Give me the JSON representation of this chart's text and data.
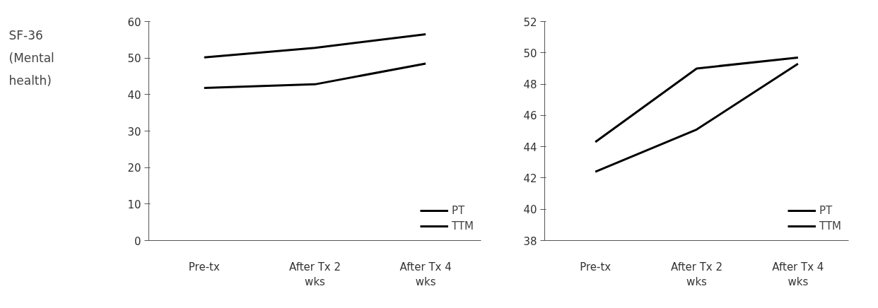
{
  "chart_data": [
    {
      "type": "other",
      "title": "SF-36 (Mental health)"
    },
    {
      "type": "line",
      "categories": [
        "Pre-tx",
        "After Tx 2 wks",
        "After Tx 4 wks"
      ],
      "ylim": [
        0,
        60
      ],
      "yticks": [
        0,
        10,
        20,
        30,
        40,
        50,
        60
      ],
      "grid": false,
      "legend": "bottom right",
      "series": [
        {
          "name": "PT",
          "color": "#000000",
          "values": [
            50.2,
            52.8,
            56.5
          ]
        },
        {
          "name": "TTM",
          "color": "#000000",
          "values": [
            41.8,
            42.8,
            48.5
          ]
        }
      ]
    },
    {
      "type": "line",
      "categories": [
        "Pre-tx",
        "After Tx 2 wks",
        "After Tx 4 wks"
      ],
      "ylim": [
        38,
        52
      ],
      "yticks": [
        38,
        40,
        42,
        44,
        46,
        48,
        50,
        52
      ],
      "grid": false,
      "legend": "bottom right",
      "series": [
        {
          "name": "PT",
          "color": "#000000",
          "values": [
            44.3,
            49.0,
            49.7
          ]
        },
        {
          "name": "TTM",
          "color": "#000000",
          "values": [
            42.4,
            45.1,
            49.3
          ]
        }
      ]
    }
  ]
}
